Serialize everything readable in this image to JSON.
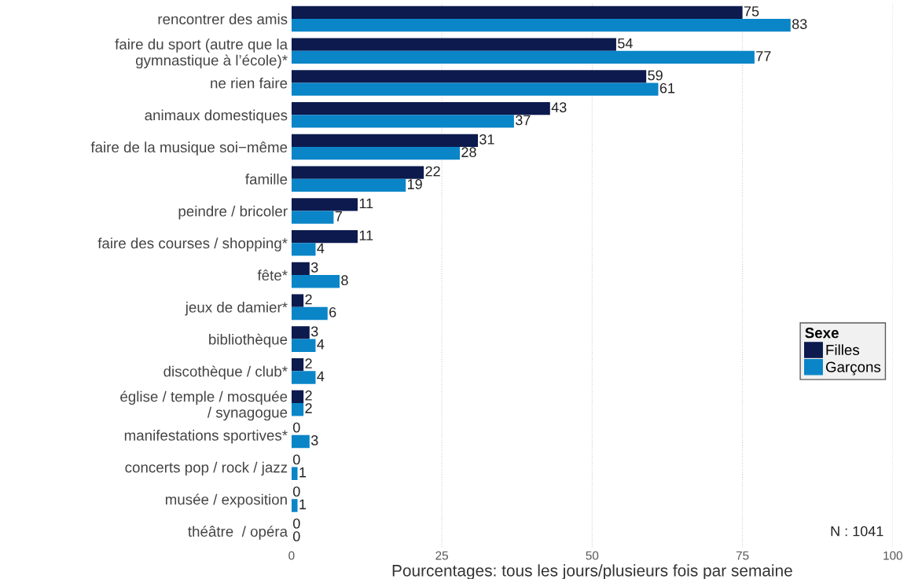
{
  "chart_data": {
    "type": "bar",
    "orientation": "horizontal",
    "categories": [
      "rencontrer des amis",
      "faire du sport (autre que la\ngymnastique à l’école)*",
      "ne rien faire",
      "animaux domestiques",
      "faire de la musique soi−même",
      "famille",
      "peindre / bricoler",
      "faire des courses / shopping*",
      "fête*",
      "jeux de damier*",
      "bibliothèque",
      "discothèque / club*",
      "église / temple / mosquée\n/ synagogue",
      "manifestations sportives*",
      "concerts pop / rock / jazz",
      "musée / exposition",
      "théâtre  / opéra"
    ],
    "series": [
      {
        "name": "Filles",
        "color": "#0c1a4e",
        "values": [
          75,
          54,
          59,
          43,
          31,
          22,
          11,
          11,
          3,
          2,
          3,
          2,
          2,
          0,
          0,
          0,
          0
        ]
      },
      {
        "name": "Garçons",
        "color": "#0a85c8",
        "values": [
          83,
          77,
          61,
          37,
          28,
          19,
          7,
          4,
          8,
          6,
          4,
          4,
          2,
          3,
          1,
          1,
          0
        ]
      }
    ],
    "xlim": [
      0,
      100
    ],
    "xticks": [
      0,
      25,
      50,
      75,
      100
    ],
    "xlabel": "Pourcentages: tous les jours/plusieurs fois par semaine",
    "legend_title": "Sexe",
    "legend": "right",
    "grid": "x",
    "data_labels": true,
    "annotations": [
      "N : 1041"
    ]
  }
}
